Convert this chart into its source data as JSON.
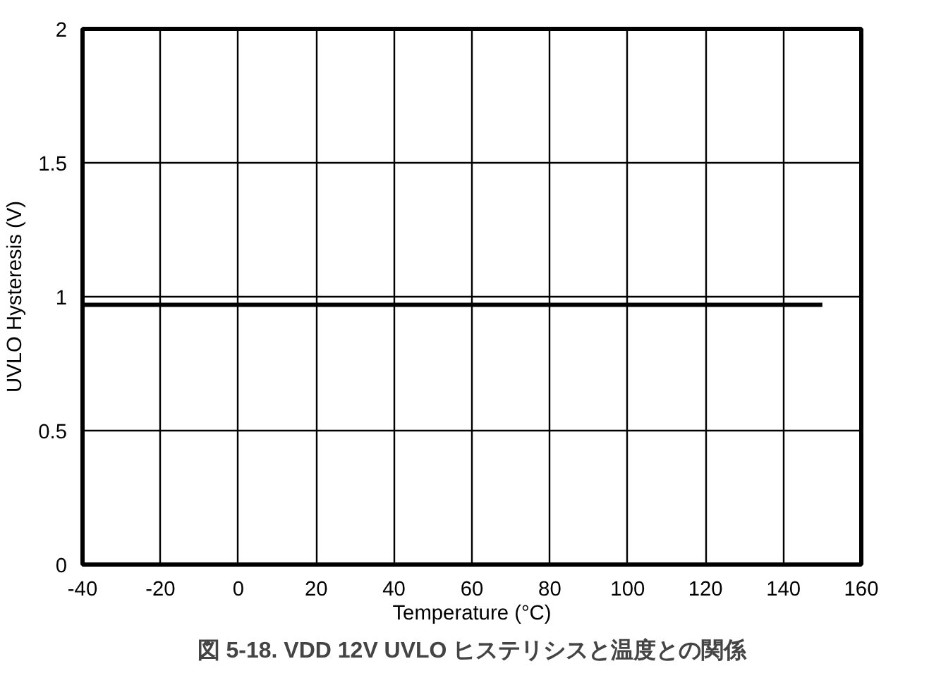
{
  "chart_data": {
    "type": "line",
    "title": "図 5-18. VDD 12V UVLO ヒステリシスと温度との関係",
    "xlabel": "Temperature (°C)",
    "ylabel": "UVLO Hysteresis (V)",
    "x": [
      -40,
      150
    ],
    "series": [
      {
        "color": "#000000",
        "values": [
          0.97,
          0.97
        ]
      }
    ],
    "xlim": [
      -40,
      160
    ],
    "ylim": [
      0,
      2
    ],
    "xticks": [
      -40,
      -20,
      0,
      20,
      40,
      60,
      80,
      100,
      120,
      140,
      160
    ],
    "yticks": [
      0,
      0.5,
      1,
      1.5,
      2
    ],
    "grid": true,
    "marker": "none",
    "line_style": "solid"
  }
}
